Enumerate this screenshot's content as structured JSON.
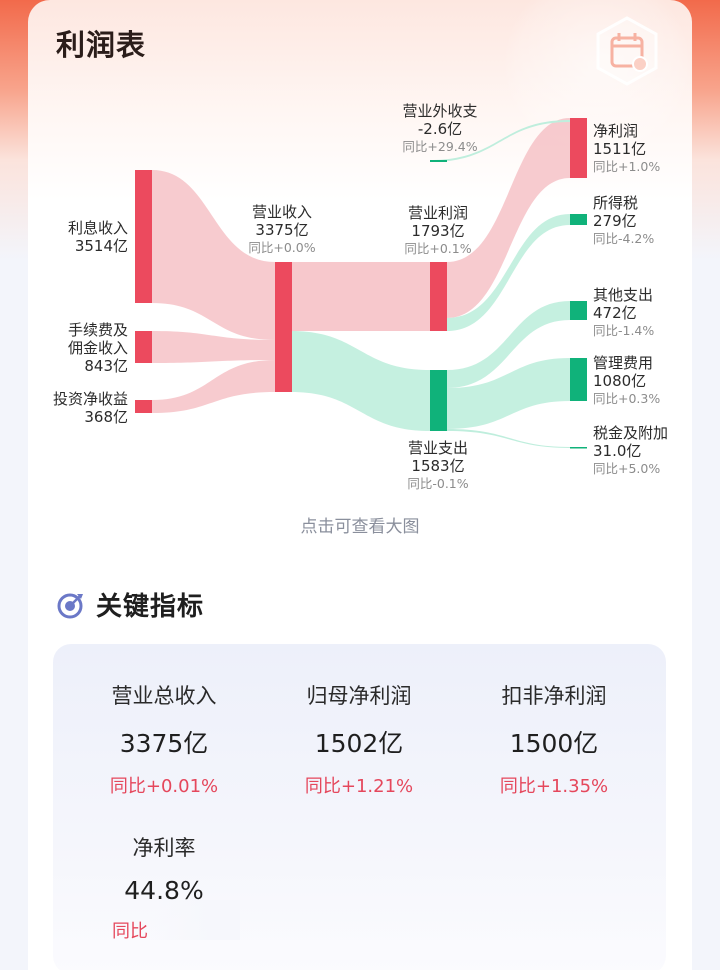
{
  "page": {
    "title": "利润表",
    "view_big": "点击可查看大图"
  },
  "colors": {
    "revenue": "#ec4a5e",
    "revenue_flow": "#f6c2c7",
    "expense": "#10b27a",
    "expense_flow": "#bfeedd",
    "yoy_up": "#e5475c"
  },
  "icons": {
    "header": "calendar-icon",
    "section": "target-icon"
  },
  "sankey": {
    "sources": [
      {
        "name": "利息收入",
        "value": "3514亿"
      },
      {
        "name_line1": "手续费及",
        "name_line2": "佣金收入",
        "value": "843亿"
      },
      {
        "name": "投资净收益",
        "value": "368亿"
      }
    ],
    "revenue": {
      "name": "营业收入",
      "value": "3375亿",
      "yoy": "同比+0.0%"
    },
    "op_profit": {
      "name": "营业利润",
      "value": "1793亿",
      "yoy": "同比+0.1%"
    },
    "non_op": {
      "name": "营业外收支",
      "value": "-2.6亿",
      "yoy": "同比+29.4%"
    },
    "op_expense": {
      "name": "营业支出",
      "value": "1583亿",
      "yoy": "同比-0.1%"
    },
    "net_profit": {
      "name": "净利润",
      "value": "1511亿",
      "yoy": "同比+1.0%"
    },
    "income_tax": {
      "name": "所得税",
      "value": "279亿",
      "yoy": "同比-4.2%"
    },
    "other_exp": {
      "name": "其他支出",
      "value": "472亿",
      "yoy": "同比-1.4%"
    },
    "admin_exp": {
      "name": "管理费用",
      "value": "1080亿",
      "yoy": "同比+0.3%"
    },
    "tax_surcharge": {
      "name": "税金及附加",
      "value": "31.0亿",
      "yoy": "同比+5.0%"
    }
  },
  "kpi": {
    "section_title": "关键指标",
    "items": [
      {
        "name": "营业总收入",
        "value": "3375亿",
        "change": "同比+0.01%"
      },
      {
        "name": "归母净利润",
        "value": "1502亿",
        "change": "同比+1.21%"
      },
      {
        "name": "扣非净利润",
        "value": "1500亿",
        "change": "同比+1.35%"
      },
      {
        "name": "净利率",
        "value": "44.8%",
        "change": "同比"
      }
    ]
  }
}
